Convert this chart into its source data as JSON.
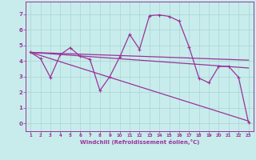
{
  "background_color": "#c8ecec",
  "grid_color": "#a8d4d4",
  "line_color": "#993399",
  "xlabel": "Windchill (Refroidissement éolien,°C)",
  "ylim": [
    -0.5,
    7.8
  ],
  "xlim": [
    0.5,
    23.5
  ],
  "yticks": [
    0,
    1,
    2,
    3,
    4,
    5,
    6,
    7
  ],
  "xticks": [
    1,
    2,
    3,
    4,
    5,
    6,
    7,
    8,
    9,
    10,
    11,
    12,
    13,
    14,
    15,
    16,
    17,
    18,
    19,
    20,
    21,
    22,
    23
  ],
  "series_main": {
    "x": [
      1,
      2,
      3,
      4,
      5,
      6,
      7,
      8,
      9,
      10,
      11,
      12,
      13,
      14,
      15,
      16,
      17,
      18,
      19,
      20,
      21,
      22,
      23
    ],
    "y": [
      4.55,
      4.15,
      2.95,
      4.4,
      4.85,
      4.3,
      4.1,
      2.1,
      3.0,
      4.25,
      5.7,
      4.75,
      6.9,
      6.95,
      6.85,
      6.55,
      4.9,
      2.9,
      2.6,
      3.65,
      3.65,
      2.95,
      0.05
    ]
  },
  "series_flat1": {
    "x": [
      1,
      23
    ],
    "y": [
      4.55,
      4.05
    ]
  },
  "series_flat2": {
    "x": [
      1,
      23
    ],
    "y": [
      4.55,
      3.55
    ]
  },
  "series_diag": {
    "x": [
      1,
      23
    ],
    "y": [
      4.55,
      0.15
    ]
  }
}
